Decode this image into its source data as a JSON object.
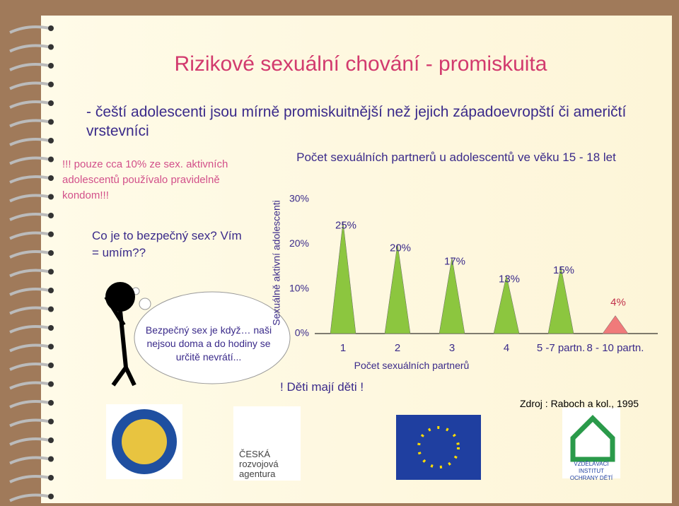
{
  "slide": {
    "title": "Rizikové sexuální chování  - promiskuita",
    "bullet": "- čeští adolescenti jsou mírně promiskuitnější než jejich západoevropští či američtí vrstevníci",
    "note": "!!! pouze cca 10% ze sex. aktivních adolescentů používalo pravidelně kondom!!!",
    "question": "Co je to bezpečný sex? Vím = umím??",
    "bubble": "Bezpečný sex je když… naši nejsou doma a do hodiny se určitě nevrátí...",
    "warning": "! Děti mají děti !",
    "source": "Zdroj : Raboch a kol., 1995",
    "logo_agency": "ČESKÁ rozvojová agentura",
    "logo_institute": "VZDĚLÁVACÍ INSTITUT OCHRANY DĚTÍ"
  },
  "chart_data": {
    "type": "cone",
    "title": "Počet sexuálních partnerů u adolescentů ve věku 15 - 18 let",
    "x_label": "Počet sexuálních partnerů",
    "y_label": "Sexuálně aktivní adolescenti",
    "categories": [
      "1",
      "2",
      "3",
      "4",
      "5 -7 partn.",
      "8 - 10 partn."
    ],
    "values": [
      25,
      20,
      17,
      13,
      15,
      4
    ],
    "value_labels": [
      "25%",
      "20%",
      "17%",
      "13%",
      "15%",
      "4%"
    ],
    "colors": [
      "#8cc63f",
      "#8cc63f",
      "#8cc63f",
      "#8cc63f",
      "#8cc63f",
      "#f07a7a"
    ],
    "ylim": [
      0,
      30
    ],
    "yticks": [
      {
        "value": 0,
        "label": "0%"
      },
      {
        "value": 10,
        "label": "10%"
      },
      {
        "value": 20,
        "label": "20%"
      },
      {
        "value": 30,
        "label": "30%"
      }
    ]
  }
}
